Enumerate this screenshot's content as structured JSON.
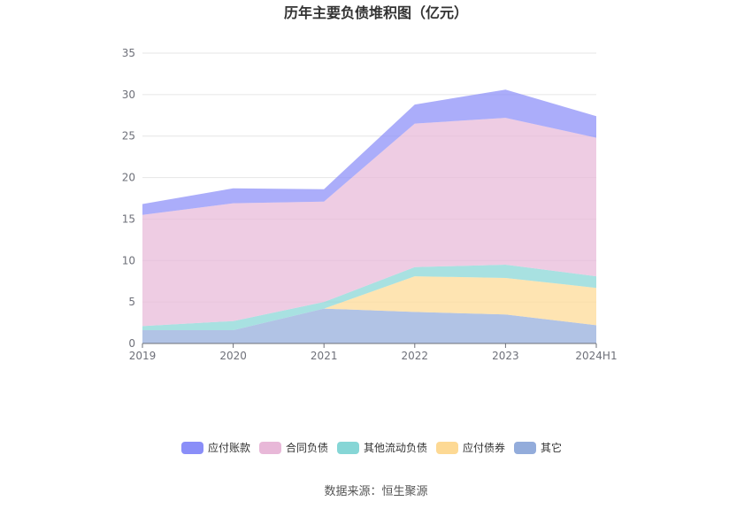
{
  "chart_data": {
    "type": "area",
    "stacked": true,
    "title": "历年主要负债堆积图（亿元）",
    "categories": [
      "2019",
      "2020",
      "2021",
      "2022",
      "2023",
      "2024H1"
    ],
    "ylim": [
      0,
      35
    ],
    "yticks": [
      0,
      5,
      10,
      15,
      20,
      25,
      30,
      35
    ],
    "grid": true,
    "legend_position": "bottom",
    "series": [
      {
        "name": "其它",
        "color": "#93acdb",
        "values": [
          1.6,
          1.6,
          4.2,
          3.8,
          3.5,
          2.2
        ]
      },
      {
        "name": "应付债券",
        "color": "#fdd994",
        "values": [
          0,
          0,
          0,
          4.3,
          4.4,
          4.5
        ]
      },
      {
        "name": "其他流动负债",
        "color": "#86d6d6",
        "values": [
          0.5,
          1.1,
          0.8,
          1.1,
          1.6,
          1.4
        ]
      },
      {
        "name": "合同负债",
        "color": "#e8b8d8",
        "values": [
          13.4,
          14.2,
          12.1,
          17.3,
          17.7,
          16.7
        ]
      },
      {
        "name": "应付账款",
        "color": "#8a8ef8",
        "values": [
          1.3,
          1.8,
          1.5,
          2.3,
          3.4,
          2.6
        ]
      }
    ]
  },
  "footer": {
    "source": "数据来源：恒生聚源"
  }
}
